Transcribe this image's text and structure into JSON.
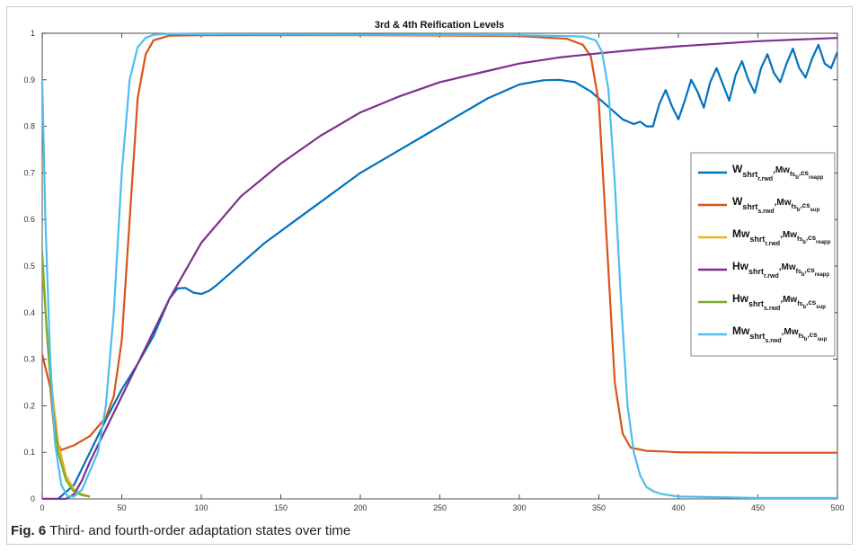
{
  "caption": {
    "label": "Fig. 6",
    "text": " Third- and fourth-order adaptation states over time"
  },
  "chart_data": {
    "type": "line",
    "title": "3rd & 4th Reification Levels",
    "xlabel": "",
    "ylabel": "",
    "xlim": [
      0,
      500
    ],
    "ylim": [
      0,
      1
    ],
    "xticks": [
      0,
      50,
      100,
      150,
      200,
      250,
      300,
      350,
      400,
      450,
      500
    ],
    "yticks": [
      0,
      0.1,
      0.2,
      0.3,
      0.4,
      0.5,
      0.6,
      0.7,
      0.8,
      0.9,
      1
    ],
    "grid": false,
    "legend_position": "right",
    "series": [
      {
        "name": "W_{shrt_{r.rwd}},Mw_{fs_b},cs_{reapp}",
        "legend": {
          "main": "W",
          "sub1": "shrt",
          "sub1b": "r.rwd",
          "mid": ",Mw",
          "sub2": "fs",
          "sub2b": "b",
          "tail": ",cs",
          "sub3": "reapp"
        },
        "color": "#0072BD",
        "points": [
          [
            0,
            0
          ],
          [
            10,
            0
          ],
          [
            20,
            0.03
          ],
          [
            30,
            0.1
          ],
          [
            40,
            0.17
          ],
          [
            50,
            0.235
          ],
          [
            60,
            0.29
          ],
          [
            70,
            0.35
          ],
          [
            80,
            0.43
          ],
          [
            85,
            0.452
          ],
          [
            90,
            0.453
          ],
          [
            95,
            0.443
          ],
          [
            100,
            0.44
          ],
          [
            105,
            0.447
          ],
          [
            110,
            0.46
          ],
          [
            120,
            0.49
          ],
          [
            140,
            0.55
          ],
          [
            160,
            0.6
          ],
          [
            180,
            0.65
          ],
          [
            200,
            0.7
          ],
          [
            220,
            0.74
          ],
          [
            240,
            0.78
          ],
          [
            260,
            0.82
          ],
          [
            280,
            0.86
          ],
          [
            300,
            0.89
          ],
          [
            315,
            0.899
          ],
          [
            325,
            0.9
          ],
          [
            335,
            0.895
          ],
          [
            345,
            0.875
          ],
          [
            355,
            0.845
          ],
          [
            365,
            0.815
          ],
          [
            372,
            0.805
          ],
          [
            376,
            0.81
          ],
          [
            380,
            0.8
          ],
          [
            384,
            0.8
          ],
          [
            388,
            0.848
          ],
          [
            392,
            0.878
          ],
          [
            396,
            0.843
          ],
          [
            400,
            0.815
          ],
          [
            404,
            0.855
          ],
          [
            408,
            0.9
          ],
          [
            412,
            0.875
          ],
          [
            416,
            0.84
          ],
          [
            420,
            0.895
          ],
          [
            424,
            0.925
          ],
          [
            428,
            0.89
          ],
          [
            432,
            0.855
          ],
          [
            436,
            0.91
          ],
          [
            440,
            0.94
          ],
          [
            444,
            0.9
          ],
          [
            448,
            0.872
          ],
          [
            452,
            0.925
          ],
          [
            456,
            0.955
          ],
          [
            460,
            0.915
          ],
          [
            464,
            0.895
          ],
          [
            468,
            0.935
          ],
          [
            472,
            0.967
          ],
          [
            476,
            0.925
          ],
          [
            480,
            0.905
          ],
          [
            484,
            0.945
          ],
          [
            488,
            0.975
          ],
          [
            492,
            0.935
          ],
          [
            496,
            0.925
          ],
          [
            500,
            0.96
          ]
        ]
      },
      {
        "name": "W_{shrt_{s.rwd}},Mw_{fs_b},cs_{sup}",
        "legend": {
          "main": "W",
          "sub1": "shrt",
          "sub1b": "s.rwd",
          "mid": ",Mw",
          "sub2": "fs",
          "sub2b": "b",
          "tail": ",cs",
          "sub3": "sup"
        },
        "color": "#D95319",
        "points": [
          [
            0,
            0.31
          ],
          [
            5,
            0.24
          ],
          [
            8,
            0.13
          ],
          [
            12,
            0.105
          ],
          [
            20,
            0.115
          ],
          [
            30,
            0.135
          ],
          [
            40,
            0.175
          ],
          [
            45,
            0.22
          ],
          [
            50,
            0.34
          ],
          [
            55,
            0.6
          ],
          [
            60,
            0.86
          ],
          [
            65,
            0.955
          ],
          [
            70,
            0.985
          ],
          [
            80,
            0.995
          ],
          [
            100,
            0.996
          ],
          [
            200,
            0.996
          ],
          [
            300,
            0.994
          ],
          [
            330,
            0.988
          ],
          [
            340,
            0.975
          ],
          [
            345,
            0.95
          ],
          [
            350,
            0.85
          ],
          [
            355,
            0.55
          ],
          [
            360,
            0.25
          ],
          [
            365,
            0.14
          ],
          [
            370,
            0.11
          ],
          [
            380,
            0.103
          ],
          [
            390,
            0.102
          ],
          [
            400,
            0.1
          ],
          [
            450,
            0.099
          ],
          [
            500,
            0.099
          ]
        ]
      },
      {
        "name": "Mw_{shrt_{r.rwd}},Mw_{fs_b},cs_{reapp}",
        "legend": {
          "main": "Mw",
          "sub1": "shrt",
          "sub1b": "r.rwd",
          "mid": ",Mw",
          "sub2": "fs",
          "sub2b": "b",
          "tail": ",cs",
          "sub3": "reapp"
        },
        "color": "#EDB120",
        "points": [
          [
            0,
            0.5
          ],
          [
            3,
            0.36
          ],
          [
            6,
            0.24
          ],
          [
            10,
            0.12
          ],
          [
            15,
            0.05
          ],
          [
            20,
            0.02
          ],
          [
            25,
            0.01
          ],
          [
            30,
            0.005
          ]
        ]
      },
      {
        "name": "Hw_{shrt_{r.rwd}},Mw_{fs_b},cs_{reapp}",
        "legend": {
          "main": "Hw",
          "sub1": "shrt",
          "sub1b": "r.rwd",
          "mid": ",Mw",
          "sub2": "fs",
          "sub2b": "b",
          "tail": ",cs",
          "sub3": "reapp"
        },
        "color": "#7E2F8E",
        "points": [
          [
            0,
            0
          ],
          [
            15,
            0
          ],
          [
            20,
            0.01
          ],
          [
            25,
            0.04
          ],
          [
            30,
            0.08
          ],
          [
            40,
            0.15
          ],
          [
            50,
            0.22
          ],
          [
            60,
            0.29
          ],
          [
            70,
            0.36
          ],
          [
            80,
            0.43
          ],
          [
            100,
            0.55
          ],
          [
            125,
            0.65
          ],
          [
            150,
            0.72
          ],
          [
            175,
            0.78
          ],
          [
            200,
            0.83
          ],
          [
            225,
            0.865
          ],
          [
            250,
            0.895
          ],
          [
            275,
            0.915
          ],
          [
            300,
            0.935
          ],
          [
            325,
            0.948
          ],
          [
            350,
            0.957
          ],
          [
            375,
            0.965
          ],
          [
            400,
            0.972
          ],
          [
            450,
            0.983
          ],
          [
            500,
            0.99
          ]
        ]
      },
      {
        "name": "Hw_{shrt_{s.rwd}},Mw_{fs_b},cs_{sup}",
        "legend": {
          "main": "Hw",
          "sub1": "shrt",
          "sub1b": "s.rwd",
          "mid": ",Mw",
          "sub2": "fs",
          "sub2b": "b",
          "tail": ",cs",
          "sub3": "sup"
        },
        "color": "#77AC30",
        "points": [
          [
            0,
            0.53
          ],
          [
            3,
            0.35
          ],
          [
            6,
            0.22
          ],
          [
            10,
            0.1
          ],
          [
            15,
            0.04
          ],
          [
            20,
            0.015
          ],
          [
            25,
            0.008
          ],
          [
            30,
            0.005
          ]
        ]
      },
      {
        "name": "Mw_{shrt_{s.rwd}},Mw_{fs_b},cs_{sup}",
        "legend": {
          "main": "Mw",
          "sub1": "shrt",
          "sub1b": "s.rwd",
          "mid": ",Mw",
          "sub2": "fs",
          "sub2b": "b",
          "tail": ",cs",
          "sub3": "sup"
        },
        "color": "#4DBEEE",
        "points": [
          [
            0,
            0.9
          ],
          [
            2,
            0.6
          ],
          [
            5,
            0.3
          ],
          [
            8,
            0.12
          ],
          [
            12,
            0.03
          ],
          [
            16,
            0.005
          ],
          [
            20,
            0.005
          ],
          [
            25,
            0.02
          ],
          [
            30,
            0.06
          ],
          [
            35,
            0.1
          ],
          [
            40,
            0.2
          ],
          [
            45,
            0.4
          ],
          [
            50,
            0.7
          ],
          [
            55,
            0.9
          ],
          [
            60,
            0.97
          ],
          [
            65,
            0.99
          ],
          [
            70,
            0.997
          ],
          [
            80,
            0.999
          ],
          [
            100,
            0.998
          ],
          [
            200,
            0.997
          ],
          [
            300,
            0.996
          ],
          [
            340,
            0.993
          ],
          [
            348,
            0.985
          ],
          [
            352,
            0.96
          ],
          [
            356,
            0.88
          ],
          [
            360,
            0.68
          ],
          [
            364,
            0.42
          ],
          [
            368,
            0.2
          ],
          [
            372,
            0.1
          ],
          [
            376,
            0.05
          ],
          [
            380,
            0.025
          ],
          [
            385,
            0.015
          ],
          [
            390,
            0.01
          ],
          [
            400,
            0.005
          ],
          [
            450,
            0.002
          ],
          [
            500,
            0.002
          ]
        ]
      }
    ]
  }
}
